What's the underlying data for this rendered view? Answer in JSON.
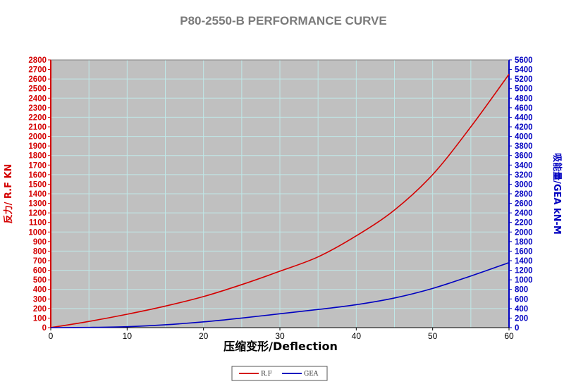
{
  "chart_data": {
    "type": "line",
    "title": "P80-2550-B PERFORMANCE CURVE",
    "xlabel": "压缩变形/Deflection",
    "ylabel_left": "反力/ R.F  KN",
    "ylabel_right": "吸能量/GEA kN-M",
    "xlim": [
      0,
      60
    ],
    "ylim_left": [
      0,
      2800
    ],
    "ylim_right": [
      0,
      5600
    ],
    "x_ticks": [
      0,
      10,
      20,
      30,
      40,
      50,
      60
    ],
    "y_left_ticks": [
      0,
      100,
      200,
      300,
      400,
      500,
      600,
      700,
      800,
      900,
      1000,
      1100,
      1200,
      1300,
      1400,
      1500,
      1600,
      1700,
      1800,
      1900,
      2000,
      2100,
      2200,
      2300,
      2400,
      2500,
      2600,
      2700,
      2800
    ],
    "y_right_ticks": [
      0,
      200,
      400,
      600,
      800,
      1000,
      1200,
      1400,
      1600,
      1800,
      2000,
      2200,
      2400,
      2600,
      2800,
      3000,
      3200,
      3400,
      3600,
      3800,
      4000,
      4200,
      4400,
      4600,
      4800,
      5000,
      5200,
      5400,
      5600
    ],
    "grid": true,
    "legend_position": "bottom-center",
    "series": [
      {
        "name": "R.F",
        "axis": "left",
        "color": "#d40000",
        "x": [
          0,
          5,
          10,
          15,
          20,
          25,
          30,
          35,
          40,
          45,
          50,
          55,
          60
        ],
        "values": [
          0,
          65,
          140,
          225,
          325,
          450,
          590,
          740,
          960,
          1230,
          1600,
          2100,
          2650
        ]
      },
      {
        "name": "GEA",
        "axis": "right",
        "color": "#0000c0",
        "x": [
          0,
          5,
          10,
          15,
          20,
          25,
          30,
          35,
          40,
          45,
          50,
          55,
          60
        ],
        "values": [
          0,
          5,
          20,
          60,
          120,
          200,
          290,
          380,
          480,
          620,
          820,
          1080,
          1360
        ]
      }
    ]
  }
}
